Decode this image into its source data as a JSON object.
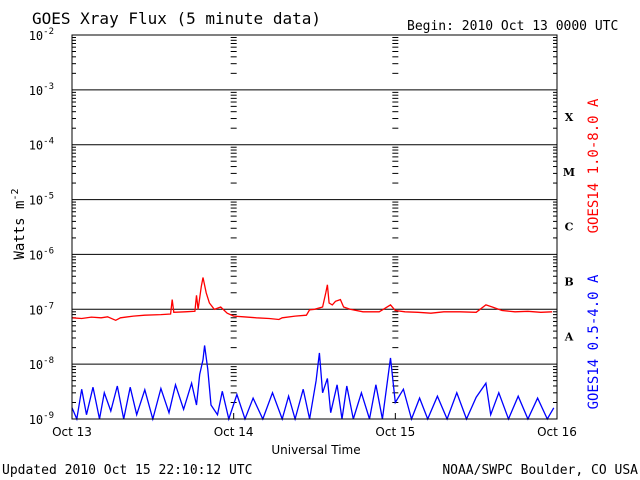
{
  "chart_data": {
    "type": "line",
    "title": "GOES Xray Flux (5 minute data)",
    "begin_label": "Begin:  2010 Oct 13 0000 UTC",
    "ylabel": "Watts m",
    "ylabel_sup": "-2",
    "xlabel": "Universal Time",
    "y_scale": "log",
    "ylim": [
      1e-09,
      0.01
    ],
    "grid": true,
    "y_ticks": [
      {
        "base": "10",
        "exp": "-2",
        "value": 0.01
      },
      {
        "base": "10",
        "exp": "-3",
        "value": 0.001
      },
      {
        "base": "10",
        "exp": "-4",
        "value": 0.0001
      },
      {
        "base": "10",
        "exp": "-5",
        "value": 1e-05
      },
      {
        "base": "10",
        "exp": "-6",
        "value": 1e-06
      },
      {
        "base": "10",
        "exp": "-7",
        "value": 1e-07
      },
      {
        "base": "10",
        "exp": "-8",
        "value": 1e-08
      },
      {
        "base": "10",
        "exp": "-9",
        "value": 1e-09
      }
    ],
    "x_ticks": [
      {
        "label": "Oct 13",
        "day": 0
      },
      {
        "label": "Oct 14",
        "day": 1
      },
      {
        "label": "Oct 15",
        "day": 2
      },
      {
        "label": "Oct 16",
        "day": 3
      }
    ],
    "flare_classes": [
      {
        "label": "X",
        "value": 0.00032
      },
      {
        "label": "M",
        "value": 3.2e-05
      },
      {
        "label": "C",
        "value": 3.2e-06
      },
      {
        "label": "B",
        "value": 3.2e-07
      },
      {
        "label": "A",
        "value": 3.2e-08
      }
    ],
    "series": [
      {
        "name": "GOES14 1.0-8.0 A",
        "color": "#ff0000",
        "points": [
          {
            "day": 0.0,
            "v": 7e-08
          },
          {
            "day": 0.06,
            "v": 6.8e-08
          },
          {
            "day": 0.12,
            "v": 7.2e-08
          },
          {
            "day": 0.18,
            "v": 7e-08
          },
          {
            "day": 0.22,
            "v": 7.3e-08
          },
          {
            "day": 0.27,
            "v": 6.3e-08
          },
          {
            "day": 0.3,
            "v": 7e-08
          },
          {
            "day": 0.38,
            "v": 7.5e-08
          },
          {
            "day": 0.45,
            "v": 7.8e-08
          },
          {
            "day": 0.55,
            "v": 8e-08
          },
          {
            "day": 0.61,
            "v": 8.2e-08
          },
          {
            "day": 0.62,
            "v": 1.5e-07
          },
          {
            "day": 0.63,
            "v": 8.8e-08
          },
          {
            "day": 0.7,
            "v": 9e-08
          },
          {
            "day": 0.76,
            "v": 9.2e-08
          },
          {
            "day": 0.77,
            "v": 1.8e-07
          },
          {
            "day": 0.78,
            "v": 1e-07
          },
          {
            "day": 0.8,
            "v": 2.6e-07
          },
          {
            "day": 0.81,
            "v": 3.8e-07
          },
          {
            "day": 0.83,
            "v": 2e-07
          },
          {
            "day": 0.85,
            "v": 1.3e-07
          },
          {
            "day": 0.88,
            "v": 1e-07
          },
          {
            "day": 0.92,
            "v": 1.1e-07
          },
          {
            "day": 0.96,
            "v": 8.5e-08
          },
          {
            "day": 1.0,
            "v": 7.5e-08
          },
          {
            "day": 1.06,
            "v": 7.3e-08
          },
          {
            "day": 1.14,
            "v": 7e-08
          },
          {
            "day": 1.22,
            "v": 6.8e-08
          },
          {
            "day": 1.28,
            "v": 6.5e-08
          },
          {
            "day": 1.3,
            "v": 7e-08
          },
          {
            "day": 1.38,
            "v": 7.5e-08
          },
          {
            "day": 1.45,
            "v": 7.8e-08
          },
          {
            "day": 1.47,
            "v": 9.8e-08
          },
          {
            "day": 1.5,
            "v": 1e-07
          },
          {
            "day": 1.55,
            "v": 1.1e-07
          },
          {
            "day": 1.57,
            "v": 2e-07
          },
          {
            "day": 1.58,
            "v": 2.8e-07
          },
          {
            "day": 1.59,
            "v": 1.3e-07
          },
          {
            "day": 1.61,
            "v": 1.2e-07
          },
          {
            "day": 1.63,
            "v": 1.4e-07
          },
          {
            "day": 1.66,
            "v": 1.5e-07
          },
          {
            "day": 1.68,
            "v": 1.1e-07
          },
          {
            "day": 1.72,
            "v": 1e-07
          },
          {
            "day": 1.8,
            "v": 9e-08
          },
          {
            "day": 1.9,
            "v": 9e-08
          },
          {
            "day": 1.97,
            "v": 1.2e-07
          },
          {
            "day": 2.0,
            "v": 9.5e-08
          },
          {
            "day": 2.06,
            "v": 9e-08
          },
          {
            "day": 2.14,
            "v": 8.8e-08
          },
          {
            "day": 2.22,
            "v": 8.5e-08
          },
          {
            "day": 2.3,
            "v": 9e-08
          },
          {
            "day": 2.4,
            "v": 9e-08
          },
          {
            "day": 2.5,
            "v": 8.8e-08
          },
          {
            "day": 2.56,
            "v": 1.2e-07
          },
          {
            "day": 2.6,
            "v": 1.1e-07
          },
          {
            "day": 2.66,
            "v": 9.5e-08
          },
          {
            "day": 2.74,
            "v": 9e-08
          },
          {
            "day": 2.82,
            "v": 9.2e-08
          },
          {
            "day": 2.9,
            "v": 8.8e-08
          },
          {
            "day": 2.97,
            "v": 9e-08
          }
        ]
      },
      {
        "name": "GOES14 0.5-4.0 A",
        "color": "#0000ff",
        "points": [
          {
            "day": 0.0,
            "v": 1.6e-09
          },
          {
            "day": 0.03,
            "v": 1e-09
          },
          {
            "day": 0.06,
            "v": 3.5e-09
          },
          {
            "day": 0.09,
            "v": 1.2e-09
          },
          {
            "day": 0.13,
            "v": 3.8e-09
          },
          {
            "day": 0.17,
            "v": 1e-09
          },
          {
            "day": 0.2,
            "v": 3e-09
          },
          {
            "day": 0.24,
            "v": 1.4e-09
          },
          {
            "day": 0.28,
            "v": 4e-09
          },
          {
            "day": 0.32,
            "v": 1e-09
          },
          {
            "day": 0.36,
            "v": 3.8e-09
          },
          {
            "day": 0.4,
            "v": 1.2e-09
          },
          {
            "day": 0.45,
            "v": 3.4e-09
          },
          {
            "day": 0.5,
            "v": 1e-09
          },
          {
            "day": 0.55,
            "v": 3.6e-09
          },
          {
            "day": 0.6,
            "v": 1.3e-09
          },
          {
            "day": 0.64,
            "v": 4.2e-09
          },
          {
            "day": 0.69,
            "v": 1.5e-09
          },
          {
            "day": 0.74,
            "v": 4.5e-09
          },
          {
            "day": 0.77,
            "v": 1.8e-09
          },
          {
            "day": 0.79,
            "v": 6.5e-09
          },
          {
            "day": 0.81,
            "v": 1.2e-08
          },
          {
            "day": 0.82,
            "v": 2.2e-08
          },
          {
            "day": 0.84,
            "v": 8e-09
          },
          {
            "day": 0.86,
            "v": 1.8e-09
          },
          {
            "day": 0.9,
            "v": 1.2e-09
          },
          {
            "day": 0.93,
            "v": 3.2e-09
          },
          {
            "day": 0.97,
            "v": 1e-09
          },
          {
            "day": 1.02,
            "v": 2.8e-09
          },
          {
            "day": 1.07,
            "v": 1e-09
          },
          {
            "day": 1.12,
            "v": 2.4e-09
          },
          {
            "day": 1.18,
            "v": 1e-09
          },
          {
            "day": 1.24,
            "v": 3e-09
          },
          {
            "day": 1.3,
            "v": 1e-09
          },
          {
            "day": 1.34,
            "v": 2.6e-09
          },
          {
            "day": 1.38,
            "v": 1e-09
          },
          {
            "day": 1.43,
            "v": 3.5e-09
          },
          {
            "day": 1.47,
            "v": 1e-09
          },
          {
            "day": 1.51,
            "v": 5e-09
          },
          {
            "day": 1.53,
            "v": 1.6e-08
          },
          {
            "day": 1.55,
            "v": 3e-09
          },
          {
            "day": 1.58,
            "v": 5.5e-09
          },
          {
            "day": 1.6,
            "v": 1.3e-09
          },
          {
            "day": 1.64,
            "v": 4.2e-09
          },
          {
            "day": 1.67,
            "v": 1e-09
          },
          {
            "day": 1.7,
            "v": 4e-09
          },
          {
            "day": 1.74,
            "v": 1e-09
          },
          {
            "day": 1.79,
            "v": 3e-09
          },
          {
            "day": 1.84,
            "v": 1e-09
          },
          {
            "day": 1.88,
            "v": 4.2e-09
          },
          {
            "day": 1.92,
            "v": 1e-09
          },
          {
            "day": 1.97,
            "v": 1.3e-08
          },
          {
            "day": 2.0,
            "v": 2e-09
          },
          {
            "day": 2.05,
            "v": 3.5e-09
          },
          {
            "day": 2.1,
            "v": 1e-09
          },
          {
            "day": 2.15,
            "v": 2.4e-09
          },
          {
            "day": 2.2,
            "v": 1e-09
          },
          {
            "day": 2.26,
            "v": 2.6e-09
          },
          {
            "day": 2.32,
            "v": 1e-09
          },
          {
            "day": 2.38,
            "v": 3e-09
          },
          {
            "day": 2.44,
            "v": 1e-09
          },
          {
            "day": 2.5,
            "v": 2.5e-09
          },
          {
            "day": 2.56,
            "v": 4.5e-09
          },
          {
            "day": 2.59,
            "v": 1.2e-09
          },
          {
            "day": 2.64,
            "v": 3e-09
          },
          {
            "day": 2.7,
            "v": 1e-09
          },
          {
            "day": 2.76,
            "v": 2.6e-09
          },
          {
            "day": 2.82,
            "v": 1e-09
          },
          {
            "day": 2.88,
            "v": 2.4e-09
          },
          {
            "day": 2.94,
            "v": 1e-09
          },
          {
            "day": 2.98,
            "v": 1.6e-09
          }
        ]
      }
    ]
  },
  "footer": {
    "updated": "Updated 2010 Oct 15 22:10:12 UTC",
    "credit": "NOAA/SWPC Boulder, CO USA"
  }
}
